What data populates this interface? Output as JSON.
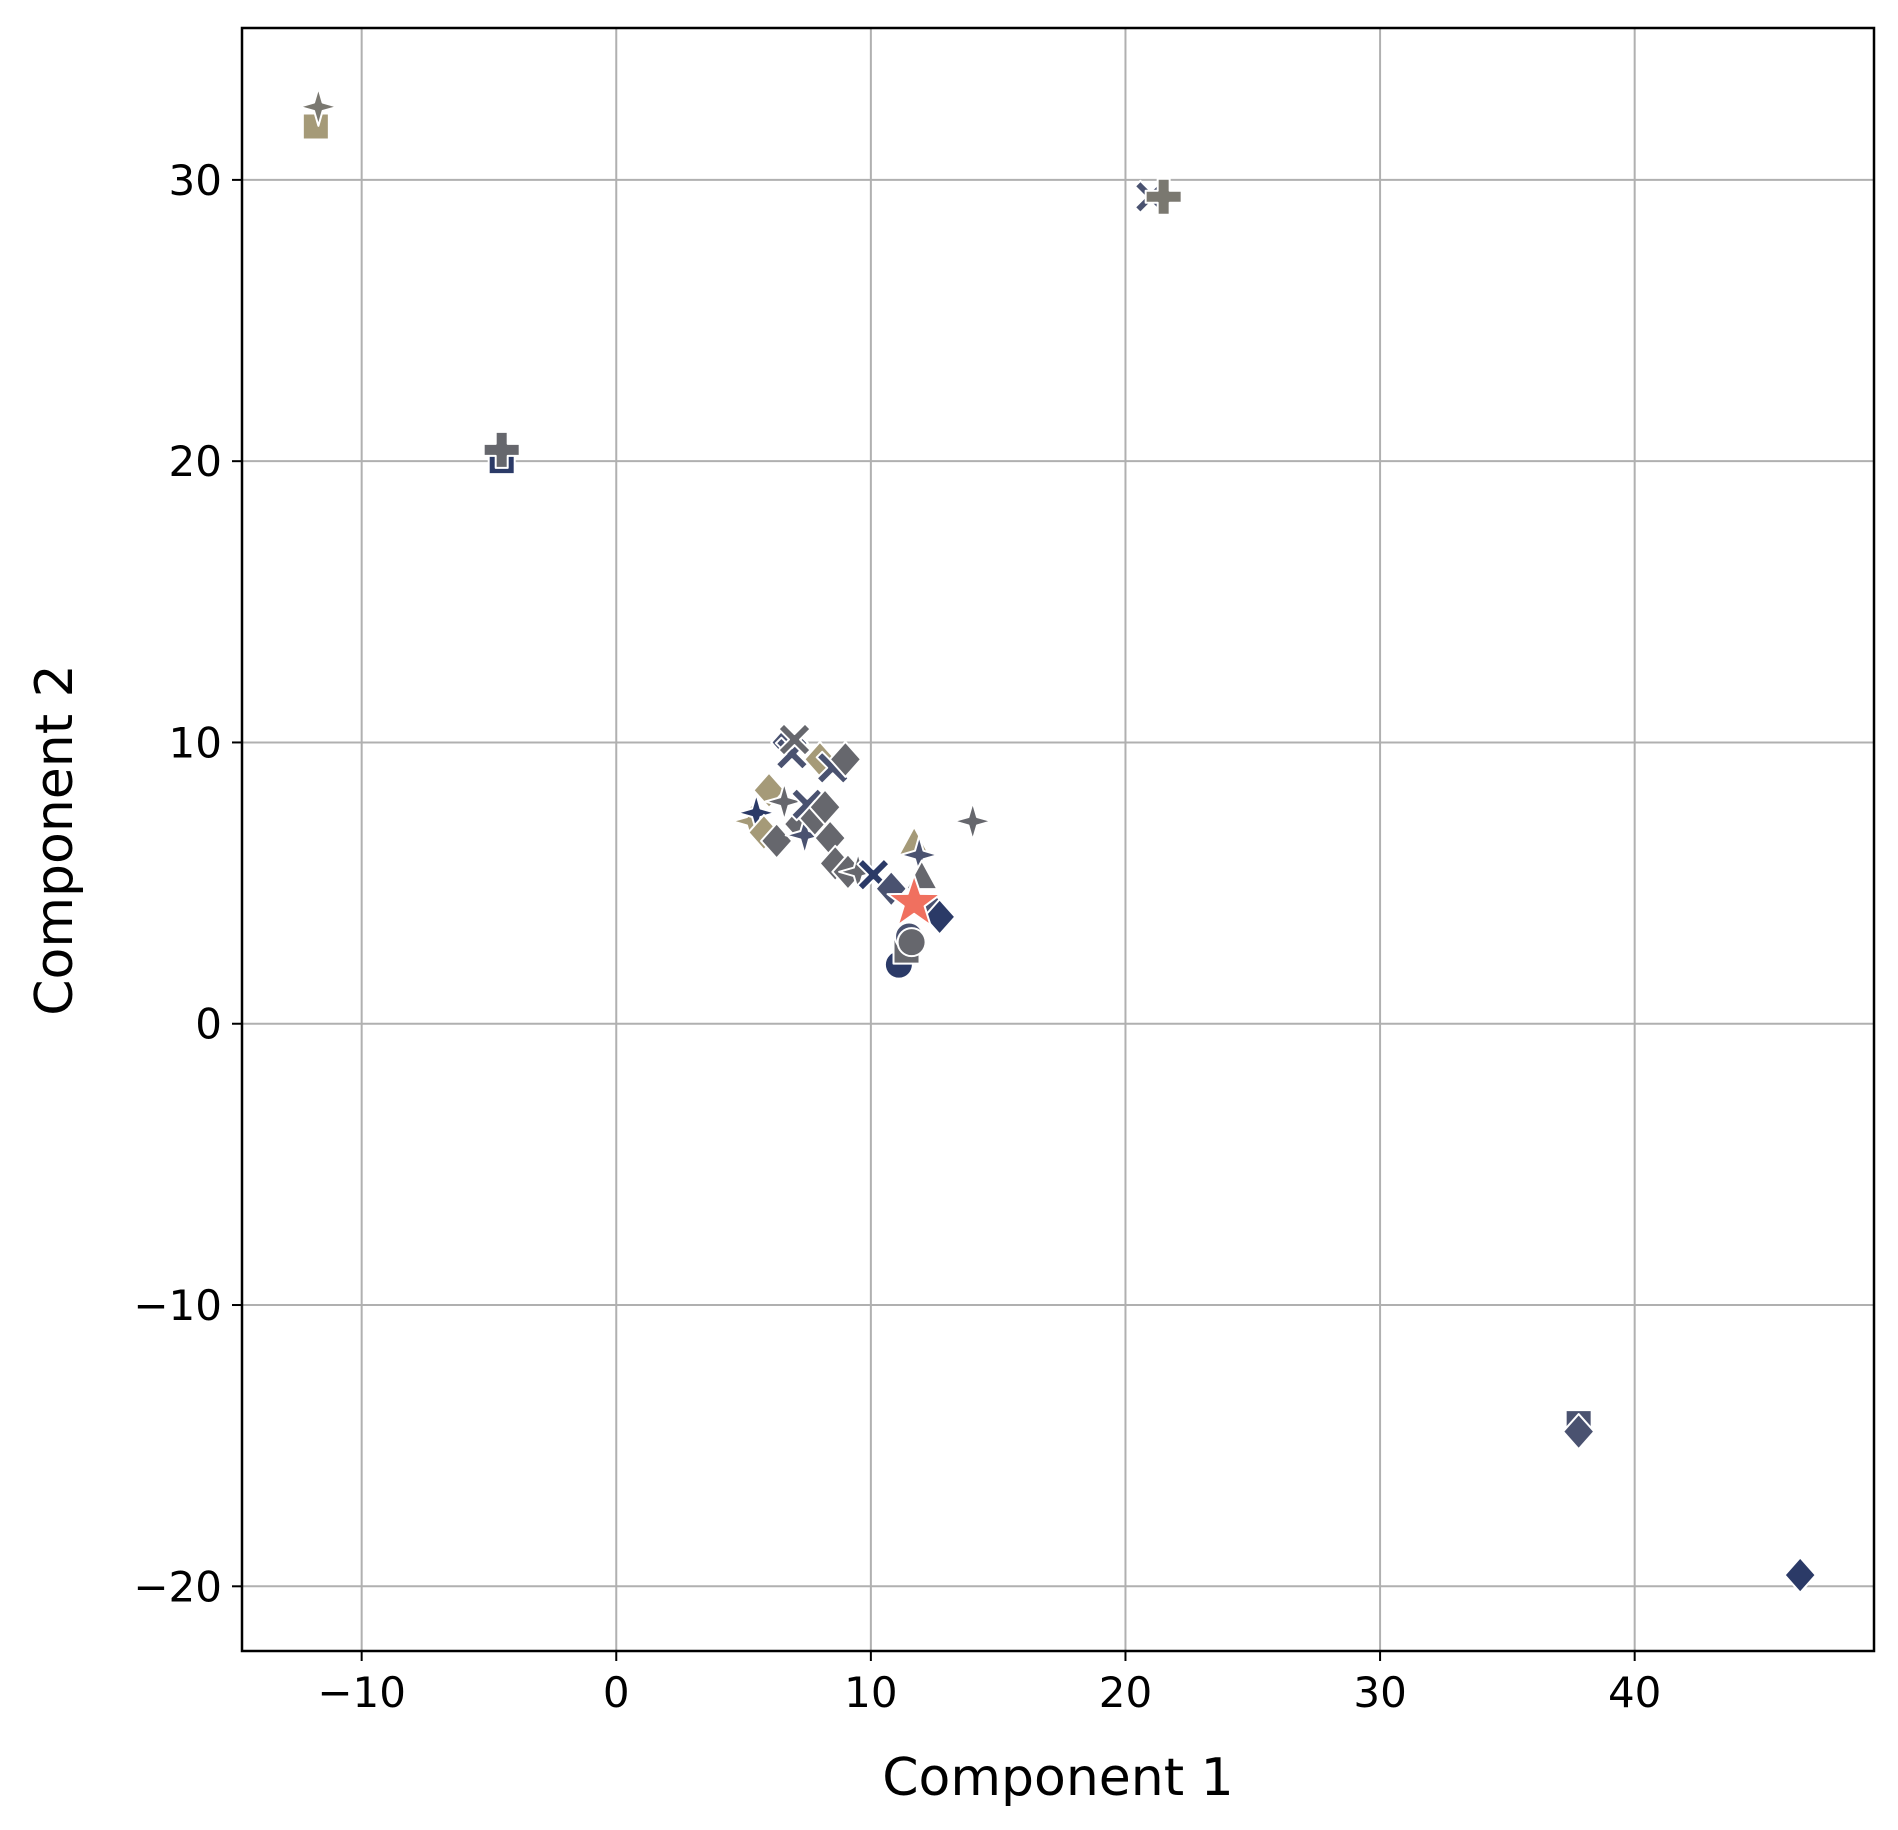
{
  "chart_data": {
    "type": "scatter",
    "title": "",
    "xlabel": "Component 1",
    "ylabel": "Component 2",
    "xlim": [
      -14.7,
      49.4
    ],
    "ylim": [
      -22.3,
      35.4
    ],
    "xticks": [
      -10,
      0,
      10,
      20,
      30,
      40
    ],
    "yticks": [
      -20,
      -10,
      0,
      10,
      20,
      30
    ],
    "xtick_labels": [
      "−10",
      "0",
      "10",
      "20",
      "30",
      "40"
    ],
    "ytick_labels": [
      "−20",
      "−10",
      "0",
      "10",
      "20",
      "30"
    ],
    "grid": true,
    "legend": "none",
    "colors": {
      "navy": "#2b3a67",
      "slate": "#4a5270",
      "gray": "#66676d",
      "taupe": "#7a7870",
      "khaki": "#a59a78",
      "highlight": "#f0705f"
    },
    "points": [
      {
        "x": -11.8,
        "y": 31.9,
        "marker": "square",
        "color": "#a59a78"
      },
      {
        "x": -11.7,
        "y": 32.6,
        "marker": "star4",
        "color": "#7a7870"
      },
      {
        "x": -4.5,
        "y": 20.0,
        "marker": "square",
        "color": "#2b3a67"
      },
      {
        "x": -4.5,
        "y": 20.4,
        "marker": "plus",
        "color": "#66676d"
      },
      {
        "x": 21.0,
        "y": 29.4,
        "marker": "x",
        "color": "#4a5270"
      },
      {
        "x": 21.5,
        "y": 29.4,
        "marker": "plus",
        "color": "#7a7870"
      },
      {
        "x": 5.3,
        "y": 7.2,
        "marker": "star4",
        "color": "#a59a78"
      },
      {
        "x": 5.5,
        "y": 7.5,
        "marker": "star4",
        "color": "#2b3a67"
      },
      {
        "x": 5.8,
        "y": 6.8,
        "marker": "diamond",
        "color": "#a59a78"
      },
      {
        "x": 6.0,
        "y": 8.3,
        "marker": "diamond",
        "color": "#a59a78"
      },
      {
        "x": 6.3,
        "y": 6.5,
        "marker": "diamond",
        "color": "#66676d"
      },
      {
        "x": 6.6,
        "y": 7.9,
        "marker": "star4",
        "color": "#66676d"
      },
      {
        "x": 6.7,
        "y": 10.0,
        "marker": "diamond",
        "color": "#4a5270"
      },
      {
        "x": 6.9,
        "y": 9.6,
        "marker": "x",
        "color": "#4a5270"
      },
      {
        "x": 7.0,
        "y": 10.1,
        "marker": "x",
        "color": "#66676d"
      },
      {
        "x": 7.2,
        "y": 7.1,
        "marker": "diamond",
        "color": "#66676d"
      },
      {
        "x": 7.4,
        "y": 6.7,
        "marker": "star4",
        "color": "#4a5270"
      },
      {
        "x": 7.5,
        "y": 7.8,
        "marker": "x",
        "color": "#4a5270"
      },
      {
        "x": 7.8,
        "y": 7.3,
        "marker": "diamond",
        "color": "#66676d"
      },
      {
        "x": 8.0,
        "y": 9.4,
        "marker": "diamond",
        "color": "#a59a78"
      },
      {
        "x": 8.2,
        "y": 7.7,
        "marker": "diamond",
        "color": "#66676d"
      },
      {
        "x": 8.4,
        "y": 6.6,
        "marker": "diamond",
        "color": "#66676d"
      },
      {
        "x": 8.5,
        "y": 9.1,
        "marker": "x",
        "color": "#4a5270"
      },
      {
        "x": 8.6,
        "y": 5.7,
        "marker": "diamond",
        "color": "#66676d"
      },
      {
        "x": 9.0,
        "y": 9.4,
        "marker": "diamond",
        "color": "#66676d"
      },
      {
        "x": 9.1,
        "y": 5.4,
        "marker": "diamond",
        "color": "#66676d"
      },
      {
        "x": 9.5,
        "y": 5.4,
        "marker": "star4",
        "color": "#66676d"
      },
      {
        "x": 10.1,
        "y": 5.3,
        "marker": "x",
        "color": "#2b3a67"
      },
      {
        "x": 10.8,
        "y": 4.8,
        "marker": "diamond",
        "color": "#4a5270"
      },
      {
        "x": 11.1,
        "y": 2.1,
        "marker": "circle",
        "color": "#2b3a67"
      },
      {
        "x": 11.4,
        "y": 2.6,
        "marker": "square",
        "color": "#66676d"
      },
      {
        "x": 11.5,
        "y": 3.1,
        "marker": "circle",
        "color": "#4a5270"
      },
      {
        "x": 11.6,
        "y": 2.9,
        "marker": "circle",
        "color": "#66676d"
      },
      {
        "x": 11.7,
        "y": 6.4,
        "marker": "triangle",
        "color": "#a59a78"
      },
      {
        "x": 11.9,
        "y": 6.0,
        "marker": "star4",
        "color": "#4a5270"
      },
      {
        "x": 12.0,
        "y": 5.2,
        "marker": "triangle",
        "color": "#66676d"
      },
      {
        "x": 12.5,
        "y": 4.0,
        "marker": "diamond",
        "color": "#4a5270"
      },
      {
        "x": 12.7,
        "y": 3.8,
        "marker": "diamond",
        "color": "#2b3a67"
      },
      {
        "x": 14.0,
        "y": 7.2,
        "marker": "star4",
        "color": "#66676d"
      },
      {
        "x": 11.7,
        "y": 4.3,
        "marker": "star5",
        "color": "#f0705f"
      },
      {
        "x": 37.8,
        "y": -14.2,
        "marker": "square",
        "color": "#4a5270"
      },
      {
        "x": 37.8,
        "y": -14.5,
        "marker": "diamond",
        "color": "#4a5270"
      },
      {
        "x": 46.5,
        "y": -19.6,
        "marker": "diamond",
        "color": "#2b3a67"
      }
    ]
  }
}
